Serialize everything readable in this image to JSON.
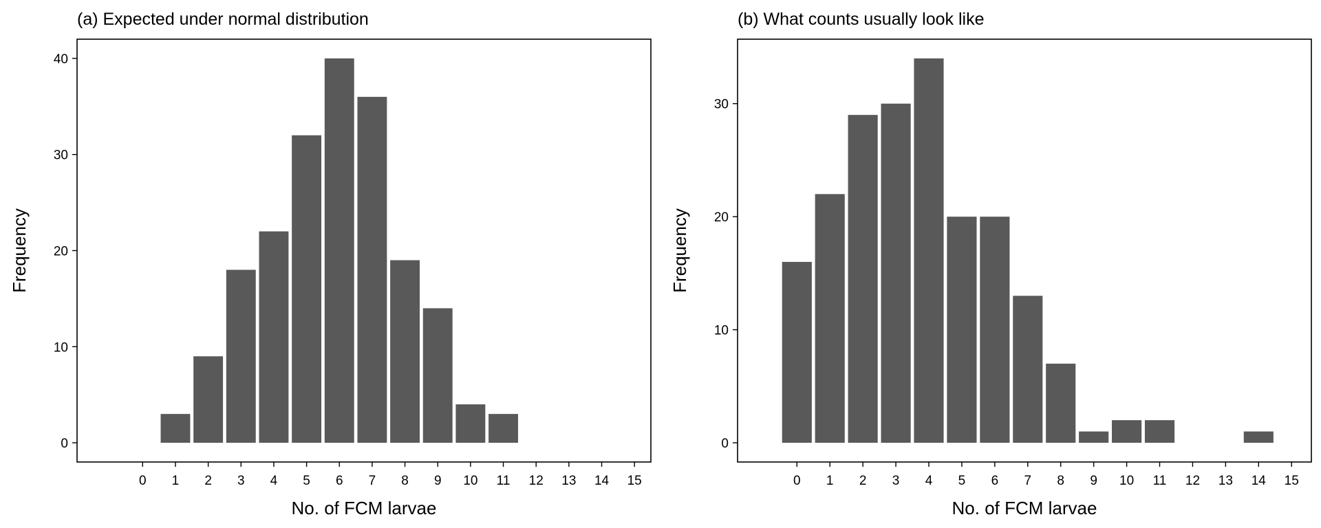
{
  "chart_data": [
    {
      "type": "bar",
      "title": "(a) Expected under normal distribution",
      "xlabel": "No. of FCM larvae",
      "ylabel": "Frequency",
      "xticks": [
        "0",
        "1",
        "2",
        "3",
        "4",
        "5",
        "6",
        "7",
        "8",
        "9",
        "10",
        "11",
        "12",
        "13",
        "14",
        "15"
      ],
      "yticks": [
        "0",
        "10",
        "20",
        "30",
        "40"
      ],
      "xlim": [
        -2,
        15.5
      ],
      "ylim": [
        -2,
        42
      ],
      "x": [
        1,
        2,
        3,
        4,
        5,
        6,
        7,
        8,
        9,
        10,
        11
      ],
      "values": [
        3,
        9,
        18,
        22,
        32,
        40,
        36,
        19,
        14,
        4,
        3
      ],
      "bar_color": "#595959",
      "grid": false,
      "legend": "none"
    },
    {
      "type": "bar",
      "title": "(b) What counts usually look like",
      "xlabel": "No. of FCM larvae",
      "ylabel": "Frequency",
      "xticks": [
        "0",
        "1",
        "2",
        "3",
        "4",
        "5",
        "6",
        "7",
        "8",
        "9",
        "10",
        "11",
        "12",
        "13",
        "14",
        "15"
      ],
      "yticks": [
        "0",
        "10",
        "20",
        "30"
      ],
      "xlim": [
        -1.8,
        15.6
      ],
      "ylim": [
        -1.7,
        35.7
      ],
      "x": [
        0,
        1,
        2,
        3,
        4,
        5,
        6,
        7,
        8,
        9,
        10,
        11,
        14
      ],
      "values": [
        16,
        22,
        29,
        30,
        34,
        20,
        20,
        13,
        7,
        1,
        2,
        2,
        1
      ],
      "bar_color": "#595959",
      "grid": false,
      "legend": "none"
    }
  ]
}
